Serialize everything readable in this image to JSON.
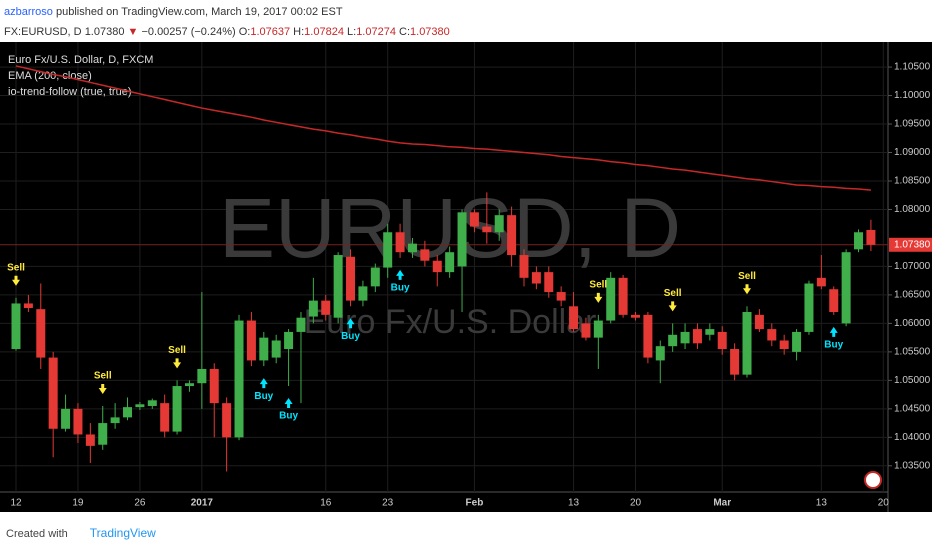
{
  "header": {
    "author": "azbarroso",
    "published": "published on TradingView.com, March 19, 2017 00:02 EST",
    "symbol": "FX:EURUSD, D",
    "price": "1.07380",
    "arrow": "▼",
    "change": "−0.00257 (−0.24%)",
    "o_label": "O:",
    "o": "1.07637",
    "h_label": "H:",
    "h": "1.07824",
    "l_label": "L:",
    "l": "1.07274",
    "c_label": "C:",
    "c": "1.07380"
  },
  "footer": {
    "created": "Created with",
    "brand": "TradingView"
  },
  "chart_data": {
    "type": "candlestick",
    "symbol_title": "Euro Fx/U.S. Dollar, D, FXCM",
    "indicator_name": "io-trend-follow (true, true)",
    "watermark": "EURUSD, D",
    "watermark_sub": "Euro Fx/U.S. Dollar",
    "up_color": "#3fae4b",
    "down_color": "#e53935",
    "grid": true,
    "categories": [
      "12",
      null,
      null,
      null,
      null,
      "19",
      null,
      null,
      null,
      null,
      "26",
      null,
      null,
      null,
      null,
      "2017",
      null,
      null,
      null,
      null,
      null,
      null,
      null,
      null,
      null,
      "16",
      null,
      null,
      null,
      null,
      "23",
      null,
      null,
      null,
      null,
      null,
      null,
      "Feb",
      null,
      null,
      null,
      null,
      null,
      null,
      null,
      "13",
      null,
      null,
      null,
      null,
      "20",
      null,
      null,
      null,
      null,
      null,
      null,
      "Mar",
      null,
      null,
      null,
      null,
      null,
      null,
      null,
      "13",
      null,
      null,
      null,
      null,
      "20"
    ],
    "open": [
      1.0555,
      1.0635,
      1.0625,
      1.054,
      1.0415,
      1.045,
      1.0405,
      1.0387,
      1.0425,
      1.0435,
      1.0453,
      1.0455,
      1.046,
      1.041,
      1.049,
      1.0495,
      1.052,
      1.046,
      1.04,
      1.0605,
      1.0535,
      1.054,
      1.0555,
      1.0585,
      1.0612,
      1.064,
      1.061,
      1.0717,
      1.064,
      1.0665,
      1.0698,
      1.076,
      1.0725,
      1.073,
      1.071,
      1.069,
      1.07,
      1.0795,
      1.077,
      1.076,
      1.079,
      1.072,
      1.069,
      1.069,
      1.0655,
      1.063,
      1.06,
      1.0575,
      1.0605,
      1.068,
      1.0615,
      1.0615,
      1.0535,
      1.056,
      1.0565,
      1.059,
      1.058,
      1.0585,
      1.0555,
      1.051,
      1.0615,
      1.059,
      1.057,
      1.055,
      1.0585,
      1.068,
      1.066,
      1.06,
      1.073,
      1.0764,
      null
    ],
    "high": [
      1.0645,
      1.065,
      1.067,
      1.055,
      1.0475,
      1.046,
      1.0425,
      1.0455,
      1.046,
      1.047,
      1.0462,
      1.0468,
      1.0475,
      1.05,
      1.05,
      1.0655,
      1.053,
      1.047,
      1.0615,
      1.062,
      1.0585,
      1.058,
      1.059,
      1.062,
      1.068,
      1.065,
      1.0725,
      1.073,
      1.0675,
      1.0705,
      1.0775,
      1.0775,
      1.075,
      1.0745,
      1.072,
      1.0735,
      1.08,
      1.08,
      1.083,
      1.08,
      1.0805,
      1.073,
      1.07,
      1.07,
      1.0665,
      1.0655,
      1.061,
      1.0615,
      1.069,
      1.0685,
      1.062,
      1.062,
      1.057,
      1.06,
      1.06,
      1.06,
      1.06,
      1.0595,
      1.0565,
      1.063,
      1.0625,
      1.06,
      1.058,
      1.059,
      1.0675,
      1.072,
      1.0665,
      1.073,
      1.0765,
      1.0782,
      null
    ],
    "low": [
      1.0552,
      1.062,
      1.052,
      1.0365,
      1.041,
      1.039,
      1.0355,
      1.0378,
      1.0415,
      1.043,
      1.0448,
      1.045,
      1.04,
      1.0405,
      1.048,
      1.045,
      1.04,
      1.034,
      1.0395,
      1.0525,
      1.0525,
      1.053,
      1.049,
      1.046,
      1.06,
      1.0605,
      1.06,
      1.063,
      1.063,
      1.0655,
      1.068,
      1.0715,
      1.0715,
      1.07,
      1.0665,
      1.068,
      1.062,
      1.076,
      1.074,
      1.0745,
      1.07,
      1.0665,
      1.066,
      1.0645,
      1.063,
      1.0585,
      1.057,
      1.052,
      1.06,
      1.061,
      1.0605,
      1.053,
      1.0495,
      1.055,
      1.0555,
      1.0555,
      1.057,
      1.0545,
      1.05,
      1.0505,
      1.0585,
      1.056,
      1.0545,
      1.0535,
      1.058,
      1.066,
      1.0615,
      1.0595,
      1.0725,
      1.0727,
      null
    ],
    "close": [
      1.0635,
      1.0627,
      1.054,
      1.0415,
      1.045,
      1.0405,
      1.0385,
      1.0425,
      1.0435,
      1.0453,
      1.0458,
      1.0465,
      1.041,
      1.049,
      1.0495,
      1.052,
      1.046,
      1.04,
      1.0605,
      1.0535,
      1.0575,
      1.057,
      1.0585,
      1.061,
      1.064,
      1.0615,
      1.072,
      1.064,
      1.0665,
      1.0698,
      1.076,
      1.0725,
      1.074,
      1.071,
      1.069,
      1.0725,
      1.0795,
      1.077,
      1.076,
      1.079,
      1.072,
      1.068,
      1.067,
      1.0655,
      1.064,
      1.059,
      1.0575,
      1.0605,
      1.068,
      1.0615,
      1.061,
      1.054,
      1.056,
      1.058,
      1.0585,
      1.0565,
      1.059,
      1.0555,
      1.051,
      1.062,
      1.059,
      1.057,
      1.0555,
      1.0585,
      1.067,
      1.0665,
      1.062,
      1.0725,
      1.076,
      1.0738,
      null
    ],
    "series": [
      {
        "name": "EMA (200, close)",
        "color": "#c62828",
        "values": [
          1.1052,
          1.1047,
          1.1042,
          1.1037,
          1.1033,
          1.1028,
          1.1023,
          1.1018,
          1.1013,
          1.1008,
          1.1003,
          1.0998,
          1.0993,
          1.0988,
          1.0983,
          1.0978,
          1.0974,
          1.097,
          1.0966,
          1.0962,
          1.0957,
          1.0953,
          1.0949,
          1.0945,
          1.0941,
          1.0938,
          1.0934,
          1.0931,
          1.0927,
          1.0924,
          1.092,
          1.0917,
          1.0915,
          1.0914,
          1.0912,
          1.091,
          1.0909,
          1.0907,
          1.0906,
          1.0904,
          1.0902,
          1.09,
          1.0898,
          1.0896,
          1.0893,
          1.0891,
          1.0889,
          1.0887,
          1.0884,
          1.0882,
          1.0879,
          1.0877,
          1.0874,
          1.0871,
          1.0869,
          1.0866,
          1.0863,
          1.086,
          1.0857,
          1.0854,
          1.0852,
          1.0849,
          1.0846,
          1.0843,
          1.0842,
          1.084,
          1.0839,
          1.0837,
          1.0836,
          1.0834,
          null
        ]
      }
    ],
    "signals": [
      {
        "label": "Sell",
        "index": 0
      },
      {
        "label": "Sell",
        "index": 7
      },
      {
        "label": "Sell",
        "index": 13
      },
      {
        "label": "Buy",
        "index": 20
      },
      {
        "label": "Buy",
        "index": 22
      },
      {
        "label": "Buy",
        "index": 27
      },
      {
        "label": "Buy",
        "index": 31
      },
      {
        "label": "Sell",
        "index": 47
      },
      {
        "label": "Sell",
        "index": 53
      },
      {
        "label": "Sell",
        "index": 59
      },
      {
        "label": "Buy",
        "index": 66
      }
    ],
    "sell_color": "#ffeb3b",
    "buy_color": "#00e5ff",
    "last_price": {
      "value": 1.0738,
      "label": "1.07380"
    },
    "ylim": [
      1.0304,
      1.1094
    ],
    "yticks": [
      {
        "value": 1.035,
        "label": "1.03500"
      },
      {
        "value": 1.04,
        "label": "1.04000"
      },
      {
        "value": 1.045,
        "label": "1.04500"
      },
      {
        "value": 1.05,
        "label": "1.05000"
      },
      {
        "value": 1.055,
        "label": "1.05500"
      },
      {
        "value": 1.06,
        "label": "1.06000"
      },
      {
        "value": 1.065,
        "label": "1.06500"
      },
      {
        "value": 1.07,
        "label": "1.07000"
      },
      {
        "value": 1.08,
        "label": "1.08000"
      },
      {
        "value": 1.085,
        "label": "1.08500"
      },
      {
        "value": 1.09,
        "label": "1.09000"
      },
      {
        "value": 1.095,
        "label": "1.09500"
      },
      {
        "value": 1.1,
        "label": "1.10000"
      },
      {
        "value": 1.105,
        "label": "1.10500"
      }
    ]
  }
}
